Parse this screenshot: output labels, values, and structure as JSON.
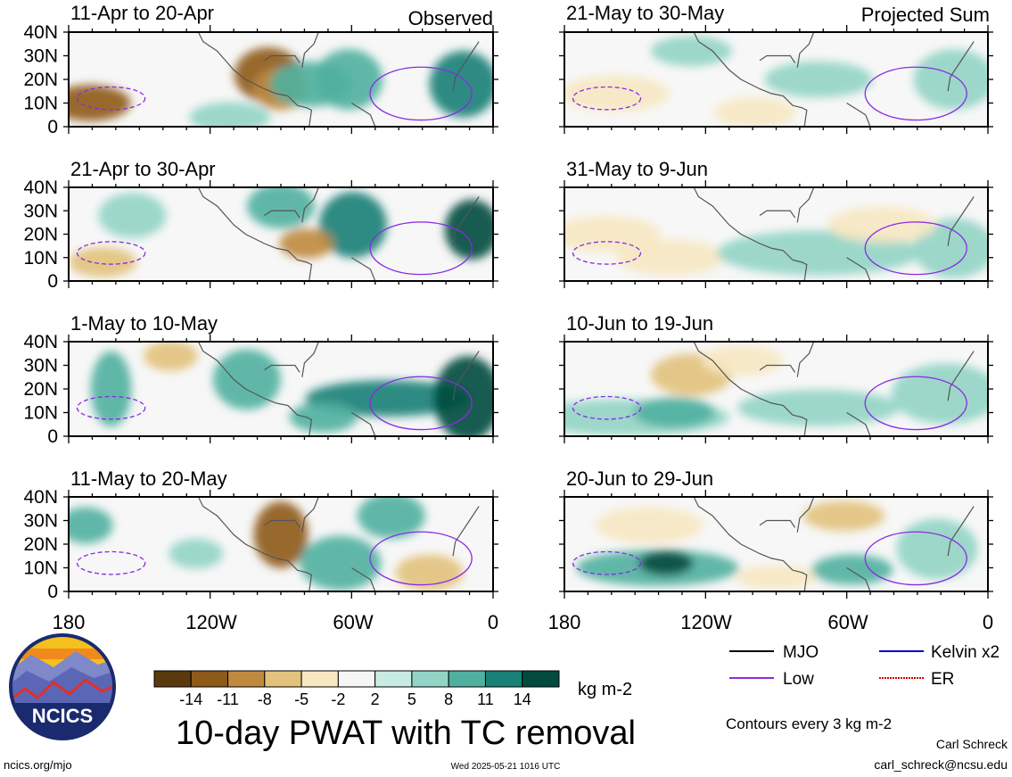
{
  "left_column": {
    "label": "Observed",
    "panels": [
      {
        "period": "11-Apr to 20-Apr"
      },
      {
        "period": "21-Apr to 30-Apr"
      },
      {
        "period": "1-May to 10-May"
      },
      {
        "period": "11-May to 20-May"
      }
    ]
  },
  "right_column": {
    "label": "Projected Sum",
    "panels": [
      {
        "period": "21-May to 30-May"
      },
      {
        "period": "31-May to 9-Jun"
      },
      {
        "period": "10-Jun to 19-Jun"
      },
      {
        "period": "20-Jun to 29-Jun"
      }
    ]
  },
  "lat_labels": [
    "40N",
    "30N",
    "20N",
    "10N",
    "0"
  ],
  "lon_labels": [
    "180",
    "120W",
    "60W",
    "0"
  ],
  "colorbar": {
    "ticks": [
      "-14",
      "-11",
      "-8",
      "-5",
      "-2",
      "2",
      "5",
      "8",
      "11",
      "14"
    ],
    "colors": [
      "#5a3a0d",
      "#8e5a1a",
      "#bf8a3e",
      "#e2c27c",
      "#f7e8c2",
      "#f6f6f6",
      "#c8ebe2",
      "#92d4c5",
      "#4fb0a0",
      "#198077",
      "#034a3e"
    ],
    "unit": "kg m-2"
  },
  "title": "10-day PWAT with TC removal",
  "legend": {
    "items": [
      {
        "label": "MJO",
        "color": "#000000",
        "style": "solid"
      },
      {
        "label": "Kelvin x2",
        "color": "#0000cc",
        "style": "solid"
      },
      {
        "label": "Low",
        "color": "#8a2be2",
        "style": "solid"
      },
      {
        "label": "ER",
        "color": "#dd0000",
        "style": "dashed"
      }
    ],
    "contour_note": "Contours every 3 kg m-2"
  },
  "logo": {
    "text": "NCICS"
  },
  "footer": {
    "url": "ncics.org/mjo",
    "timestamp": "Wed 2025-05-21 1016 UTC",
    "author": "Carl Schreck",
    "email": "carl_schreck@ncsu.edu"
  }
}
